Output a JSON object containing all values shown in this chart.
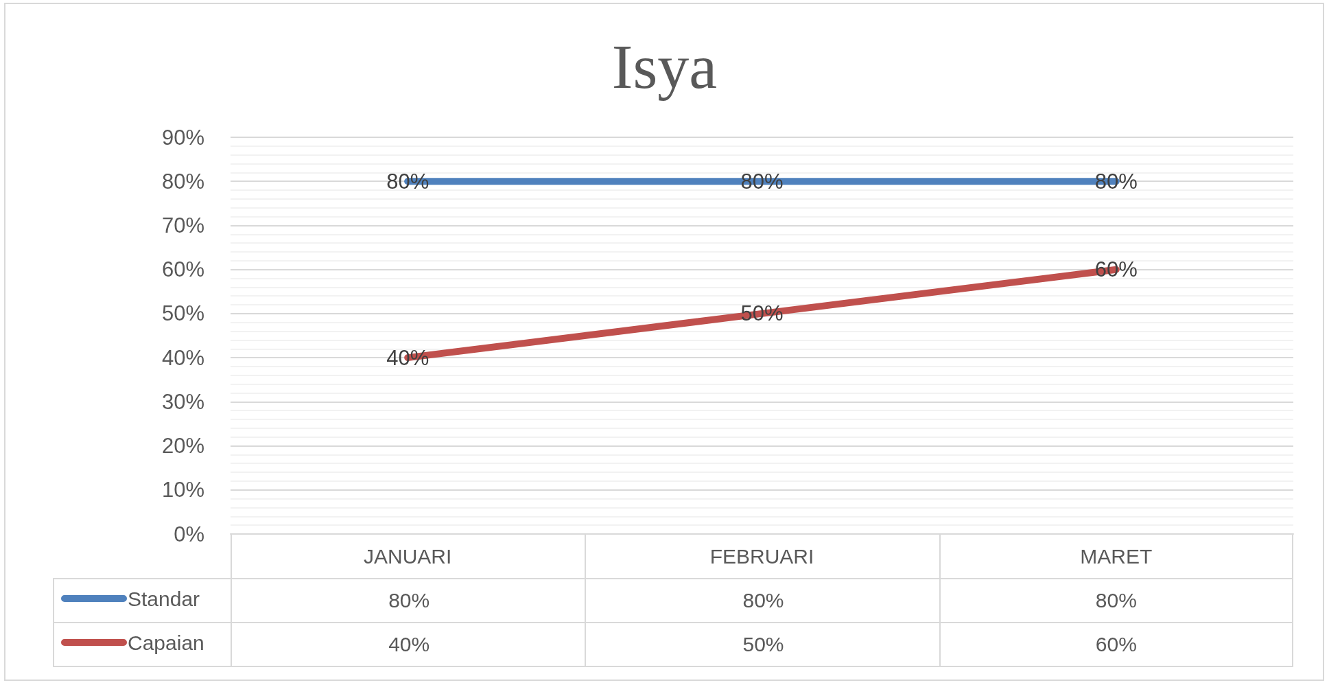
{
  "chart_data": {
    "type": "line",
    "title": "Isya",
    "categories": [
      "JANUARI",
      "FEBRUARI",
      "MARET"
    ],
    "series": [
      {
        "name": "Standar",
        "color": "#4f81bd",
        "values": [
          80,
          80,
          80
        ],
        "value_labels": [
          "80%",
          "80%",
          "80%"
        ]
      },
      {
        "name": "Capaian",
        "color": "#c0504d",
        "values": [
          40,
          50,
          60
        ],
        "value_labels": [
          "40%",
          "50%",
          "60%"
        ]
      }
    ],
    "ylim": [
      0,
      90
    ],
    "yticks": [
      {
        "value": 0,
        "label": "0%"
      },
      {
        "value": 10,
        "label": "10%"
      },
      {
        "value": 20,
        "label": "20%"
      },
      {
        "value": 30,
        "label": "30%"
      },
      {
        "value": 40,
        "label": "40%"
      },
      {
        "value": 50,
        "label": "50%"
      },
      {
        "value": 60,
        "label": "60%"
      },
      {
        "value": 70,
        "label": "70%"
      },
      {
        "value": 80,
        "label": "80%"
      },
      {
        "value": 90,
        "label": "90%"
      }
    ],
    "grid": "y",
    "legend": "bottom left"
  }
}
